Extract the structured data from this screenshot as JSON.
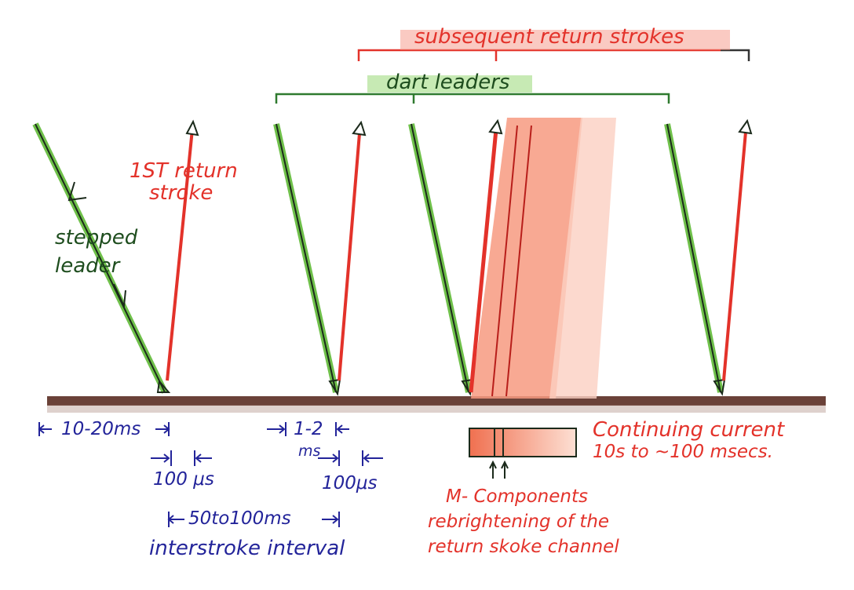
{
  "labels": {
    "subsequent": "subsequent return strokes",
    "dart": "dart leaders",
    "first_return_1": "1ST return",
    "first_return_2": "stroke",
    "stepped_1": "stepped",
    "stepped_2": "leader",
    "t_10_20": "10-20ms",
    "t_1_2": "1-2",
    "t_ms": "ms",
    "t_100us_a": "100 μs",
    "t_100us_b": "100μs",
    "t_50_100": "50to100ms",
    "interstroke": "interstroke interval",
    "continuing_1": "Continuing current",
    "continuing_2": "10s to ~100 msecs.",
    "m_1": "M- Components",
    "m_2": "rebrightening of the",
    "m_3": "return skoke channel"
  },
  "colors": {
    "green": "#6fc04a",
    "dark": "#1b2a1b",
    "red": "#e3322a",
    "salmon": "#f58b6e",
    "ground": "#5a2c22",
    "blue": "#23249a"
  }
}
